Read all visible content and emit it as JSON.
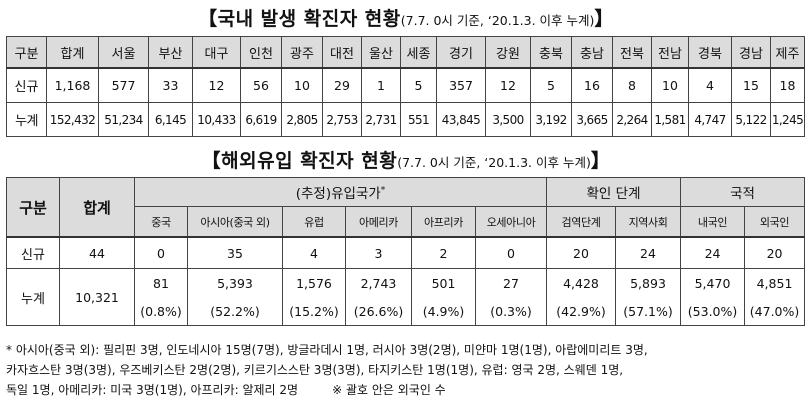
{
  "title1": {
    "main": "【국내 발생 확진자 현황",
    "sub": "(7.7. 0시 기준, ‘20.1.3. 이후 누계)",
    "close": "】"
  },
  "table1": {
    "headers": [
      "구분",
      "합계",
      "서울",
      "부산",
      "대구",
      "인천",
      "광주",
      "대전",
      "울산",
      "세종",
      "경기",
      "강원",
      "충북",
      "충남",
      "전북",
      "전남",
      "경북",
      "경남",
      "제주"
    ],
    "rows": [
      [
        "신규",
        "1,168",
        "577",
        "33",
        "12",
        "56",
        "10",
        "29",
        "1",
        "5",
        "357",
        "12",
        "5",
        "16",
        "8",
        "10",
        "4",
        "15",
        "18"
      ],
      [
        "누계",
        "152,432",
        "51,234",
        "6,145",
        "10,433",
        "6,619",
        "2,805",
        "2,753",
        "2,731",
        "551",
        "43,845",
        "3,500",
        "3,192",
        "3,665",
        "2,264",
        "1,581",
        "4,747",
        "5,122",
        "1,245"
      ]
    ]
  },
  "title2": {
    "main": "【해외유입 확진자 현황",
    "sub": "(7.7. 0시 기준, ‘20.1.3. 이후 누계)",
    "close": "】"
  },
  "table2": {
    "label_header": "구분",
    "total_header": "합계",
    "group_inflow": "(추정)유입국가",
    "group_inflow_mark": "*",
    "group_confirm": "확인 단계",
    "group_nation": "국적",
    "sub_headers": [
      "중국",
      "아시아(중국 외)",
      "유럽",
      "아메리카",
      "아프리카",
      "오세아니아",
      "검역단계",
      "지역사회",
      "내국인",
      "외국인"
    ],
    "new_row": {
      "label": "신규",
      "total": "44",
      "values": [
        "0",
        "35",
        "4",
        "3",
        "2",
        "0",
        "20",
        "24",
        "24",
        "20"
      ]
    },
    "cum_row": {
      "label": "누계",
      "total": "10,321",
      "values": [
        "81",
        "5,393",
        "1,576",
        "2,743",
        "501",
        "27",
        "4,428",
        "5,893",
        "5,470",
        "4,851"
      ],
      "percents": [
        "(0.8%)",
        "(52.2%)",
        "(15.2%)",
        "(26.6%)",
        "(4.9%)",
        "(0.3%)",
        "(42.9%)",
        "(57.1%)",
        "(53.0%)",
        "(47.0%)"
      ]
    }
  },
  "footnote": {
    "line1": "* 아시아(중국 외): 필리핀 3명, 인도네시아 15명(7명), 방글라데시 1명, 러시아 3명(2명), 미얀마 1명(1명), 아랍에미리트 3명,",
    "line2": "카자흐스탄 3명(3명), 우즈베키스탄 2명(2명), 키르기스스탄 3명(3명), 타지키스탄 1명(1명), 유럽: 영국 2명, 스웨덴 1명,",
    "line3a": "독일 1명, 아메리카: 미국 3명(1명), 아프리카: 알제리 2명",
    "line3b": "※ 괄호 안은 외국인 수"
  }
}
